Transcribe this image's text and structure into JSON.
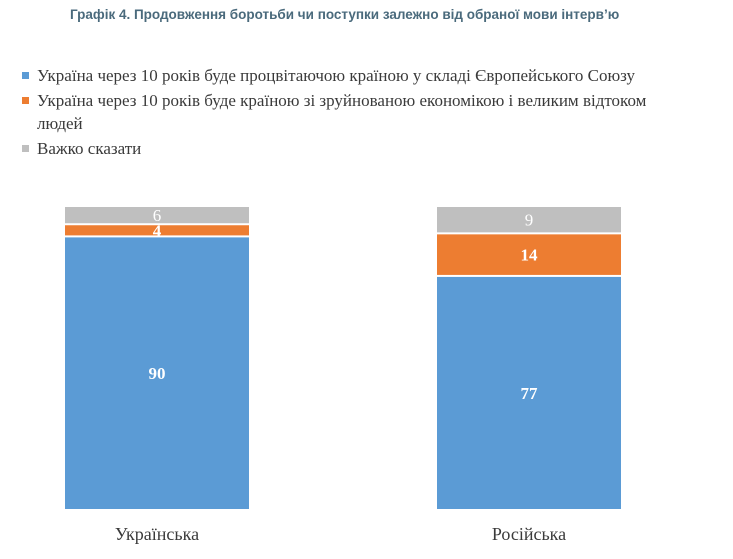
{
  "chart_data": {
    "type": "bar",
    "stacked": true,
    "normalized": true,
    "title": "Графік 4. Продовження боротьби чи поступки залежно від обраної мови інтерв’ю",
    "categories": [
      "Українська",
      "Російська"
    ],
    "series": [
      {
        "name": "Україна через 10 років буде процвітаючою країною у складі Європейського Союзу",
        "color": "#5b9bd5",
        "label_color": "#ffffff",
        "values": [
          90,
          77
        ]
      },
      {
        "name": "Україна через 10 років буде країною зі зруйнованою економікою і великим відтоком людей",
        "color": "#ed7d31",
        "label_color": "#ffffff",
        "values": [
          4,
          14
        ]
      },
      {
        "name": "Важко сказати",
        "color": "#bfbfbf",
        "label_color": "#ffffff",
        "values": [
          6,
          9
        ]
      }
    ],
    "ylim": [
      0,
      100
    ],
    "grid": false,
    "legend_position": "top",
    "value_labels": true
  }
}
